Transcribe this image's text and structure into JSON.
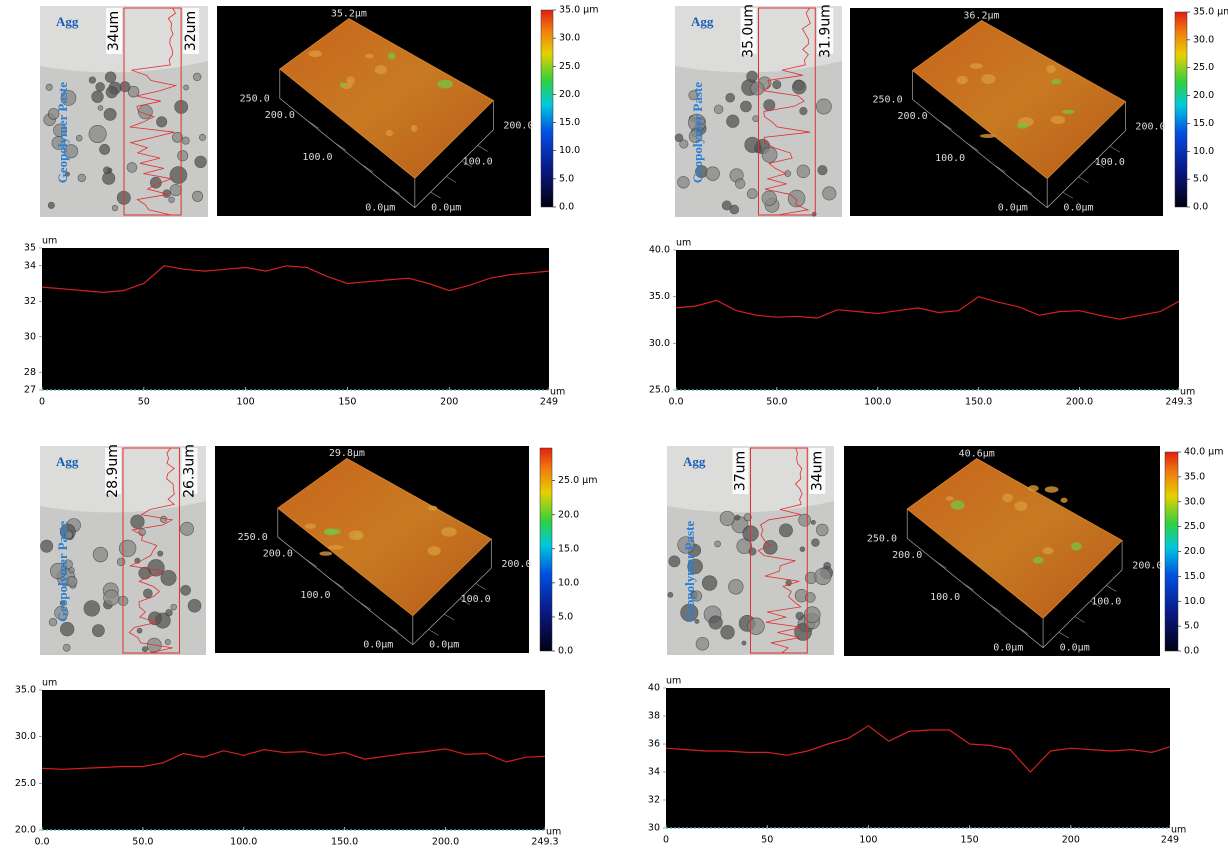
{
  "chart_data": [
    {
      "type": "line",
      "xlabel": "um",
      "ylabel": "um",
      "color": "#d42020",
      "x": [
        0,
        10,
        20,
        30,
        40,
        50,
        60,
        70,
        80,
        90,
        100,
        110,
        120,
        130,
        140,
        150,
        160,
        170,
        180,
        190,
        200,
        210,
        220,
        230,
        240,
        249
      ],
      "values": [
        32.8,
        32.7,
        32.6,
        32.5,
        32.6,
        33.0,
        34.0,
        33.8,
        33.7,
        33.8,
        33.9,
        33.7,
        34.0,
        33.9,
        33.4,
        33.0,
        33.1,
        33.2,
        33.3,
        33.0,
        32.6,
        32.9,
        33.3,
        33.5,
        33.6,
        33.7
      ],
      "xlim": [
        0,
        249
      ],
      "xticks": [
        0,
        50,
        100,
        150,
        200,
        249
      ],
      "ylim": [
        27,
        35
      ],
      "yticks": [
        27,
        28,
        30,
        32,
        34,
        35
      ]
    },
    {
      "type": "line",
      "xlabel": "um",
      "ylabel": "um",
      "color": "#d42020",
      "x": [
        0,
        10,
        20,
        30,
        40,
        50,
        60,
        70,
        80,
        90,
        100,
        110,
        120,
        130,
        140,
        150,
        160,
        170,
        180,
        190,
        200,
        210,
        220,
        230,
        240,
        249.3
      ],
      "values": [
        33.8,
        34.0,
        34.6,
        33.5,
        33.0,
        32.8,
        32.9,
        32.7,
        33.6,
        33.4,
        33.2,
        33.5,
        33.8,
        33.3,
        33.5,
        35.0,
        34.4,
        33.9,
        33.0,
        33.4,
        33.5,
        33.0,
        32.6,
        33.0,
        33.4,
        34.5
      ],
      "xlim": [
        0,
        249.3
      ],
      "xticks": [
        {
          "value": 0,
          "label": "0.0"
        },
        {
          "value": 50,
          "label": "50.0"
        },
        {
          "value": 100,
          "label": "100.0"
        },
        {
          "value": 150,
          "label": "150.0"
        },
        {
          "value": 200,
          "label": "200.0"
        },
        249.3
      ],
      "ylim": [
        25,
        40
      ],
      "yticks": [
        {
          "value": 25,
          "label": "25.0"
        },
        {
          "value": 30,
          "label": "30.0"
        },
        {
          "value": 35,
          "label": "35.0"
        },
        {
          "value": 40,
          "label": "40.0"
        }
      ]
    },
    {
      "type": "line",
      "xlabel": "um",
      "ylabel": "um",
      "color": "#d42020",
      "x": [
        0,
        10,
        20,
        30,
        40,
        50,
        60,
        70,
        80,
        90,
        100,
        110,
        120,
        130,
        140,
        150,
        160,
        170,
        180,
        190,
        200,
        210,
        220,
        230,
        240,
        249.3
      ],
      "values": [
        26.6,
        26.5,
        26.6,
        26.7,
        26.8,
        26.8,
        27.2,
        28.2,
        27.8,
        28.5,
        28.0,
        28.6,
        28.3,
        28.4,
        28.0,
        28.3,
        27.6,
        27.9,
        28.2,
        28.4,
        28.7,
        28.1,
        28.2,
        27.3,
        27.8,
        27.9
      ],
      "xlim": [
        0,
        249.3
      ],
      "xticks": [
        {
          "value": 0,
          "label": "0.0"
        },
        {
          "value": 50,
          "label": "50.0"
        },
        {
          "value": 100,
          "label": "100.0"
        },
        {
          "value": 150,
          "label": "150.0"
        },
        {
          "value": 200,
          "label": "200.0"
        },
        249.3
      ],
      "ylim": [
        20,
        35
      ],
      "yticks": [
        {
          "value": 20,
          "label": "20.0"
        },
        {
          "value": 25,
          "label": "25.0"
        },
        {
          "value": 30,
          "label": "30.0"
        },
        {
          "value": 35,
          "label": "35.0"
        }
      ]
    },
    {
      "type": "line",
      "xlabel": "um",
      "ylabel": "um",
      "color": "#d42020",
      "x": [
        0,
        10,
        20,
        30,
        40,
        50,
        60,
        70,
        80,
        90,
        100,
        110,
        120,
        130,
        140,
        150,
        160,
        170,
        180,
        190,
        200,
        210,
        220,
        230,
        240,
        249
      ],
      "values": [
        35.7,
        35.6,
        35.5,
        35.5,
        35.4,
        35.4,
        35.2,
        35.5,
        36.0,
        36.4,
        37.3,
        36.2,
        36.9,
        37.0,
        37.0,
        36.0,
        35.9,
        35.6,
        34.0,
        35.5,
        35.7,
        35.6,
        35.5,
        35.6,
        35.4,
        35.8
      ],
      "xlim": [
        0,
        249
      ],
      "xticks": [
        0,
        50,
        100,
        150,
        200,
        249
      ],
      "ylim": [
        30,
        40
      ],
      "yticks": [
        30,
        32,
        34,
        36,
        38,
        40
      ]
    }
  ],
  "panels": [
    {
      "micrograph": {
        "agg": "Agg",
        "paste": "Geopolymer Paste",
        "left_depth": "34um",
        "right_depth": "32um"
      },
      "surface": {
        "peak": "35.2µm",
        "y_labels": [
          "250.0",
          "200.0",
          "100.0"
        ],
        "x_labels": [
          "200.0",
          "100.0"
        ],
        "origin_y": "0.0µm",
        "origin_x": "0.0µm"
      },
      "colorbar": {
        "range": [
          0,
          35
        ],
        "ticks": [
          {
            "value": 35,
            "label": "35.0 µm"
          },
          {
            "value": 30,
            "label": "30.0"
          },
          {
            "value": 25,
            "label": "25.0"
          },
          {
            "value": 20,
            "label": "20.0"
          },
          {
            "value": 15,
            "label": "15.0"
          },
          {
            "value": 10,
            "label": "10.0"
          },
          {
            "value": 5,
            "label": "5.0"
          },
          {
            "value": 0,
            "label": "0.0"
          }
        ]
      }
    },
    {
      "micrograph": {
        "agg": "Agg",
        "paste": "Geopolymer Paste",
        "left_depth": "35.0um",
        "right_depth": "31.9um"
      },
      "surface": {
        "peak": "36.2µm",
        "y_labels": [
          "250.0",
          "200.0",
          "100.0"
        ],
        "x_labels": [
          "200.0",
          "100.0"
        ],
        "origin_y": "0.0µm",
        "origin_x": "0.0µm"
      },
      "colorbar": {
        "range": [
          0,
          35
        ],
        "ticks": [
          {
            "value": 35,
            "label": "35.0 µm"
          },
          {
            "value": 30,
            "label": "30.0"
          },
          {
            "value": 25,
            "label": "25.0"
          },
          {
            "value": 20,
            "label": "20.0"
          },
          {
            "value": 15,
            "label": "15.0"
          },
          {
            "value": 10,
            "label": "10.0"
          },
          {
            "value": 5,
            "label": "5.0"
          },
          {
            "value": 0,
            "label": "0.0"
          }
        ]
      }
    },
    {
      "micrograph": {
        "agg": "Agg",
        "paste": "Geopolymer Paste",
        "left_depth": "28.9um",
        "right_depth": "26.3um"
      },
      "surface": {
        "peak": "29.8µm",
        "y_labels": [
          "250.0",
          "200.0",
          "100.0"
        ],
        "x_labels": [
          "200.0",
          "100.0"
        ],
        "origin_y": "0.0µm",
        "origin_x": "0.0µm"
      },
      "colorbar": {
        "range": [
          0,
          29.8
        ],
        "ticks": [
          {
            "value": 25,
            "label": "25.0 µm"
          },
          {
            "value": 20,
            "label": "20.0"
          },
          {
            "value": 15,
            "label": "15.0"
          },
          {
            "value": 10,
            "label": "10.0"
          },
          {
            "value": 5,
            "label": "5.0"
          },
          {
            "value": 0,
            "label": "0.0"
          }
        ]
      }
    },
    {
      "micrograph": {
        "agg": "Agg",
        "paste": "Geopolymer Paste",
        "left_depth": "37um",
        "right_depth": "34um"
      },
      "surface": {
        "peak": "40.6µm",
        "y_labels": [
          "250.0",
          "200.0",
          "100.0"
        ],
        "x_labels": [
          "200.0",
          "100.0"
        ],
        "origin_y": "0.0µm",
        "origin_x": "0.0µm"
      },
      "colorbar": {
        "range": [
          0,
          40
        ],
        "ticks": [
          {
            "value": 40,
            "label": "40.0 µm"
          },
          {
            "value": 35,
            "label": "35.0"
          },
          {
            "value": 30,
            "label": "30.0"
          },
          {
            "value": 25,
            "label": "25.0"
          },
          {
            "value": 20,
            "label": "20.0"
          },
          {
            "value": 15,
            "label": "15.0"
          },
          {
            "value": 10,
            "label": "10.0"
          },
          {
            "value": 5,
            "label": "5.0"
          },
          {
            "value": 0,
            "label": "0.0"
          }
        ]
      }
    }
  ]
}
